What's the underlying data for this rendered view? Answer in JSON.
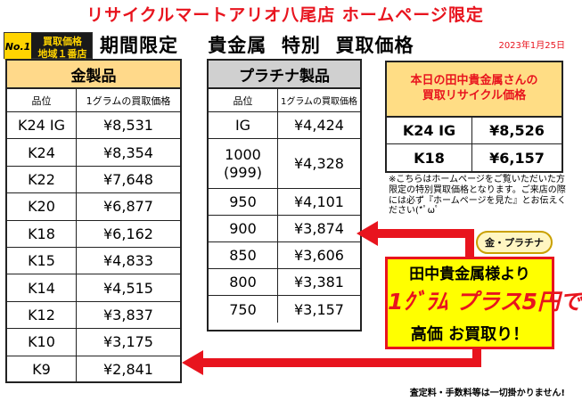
{
  "header": {
    "title": "リサイクルマートアリオ八尾店  ホームページ限定",
    "badge_no1": "No.1",
    "badge_line1": "買取価格",
    "badge_line2": "地域１番店",
    "main_title": "期間限定    貴金属  特別  買取価格",
    "date": "2023年1月25日"
  },
  "gold": {
    "title": "金製品",
    "col_item": "品位",
    "col_price": "1グラムの買取価格",
    "rows": [
      {
        "item": "K24 IG",
        "price": "¥8,531"
      },
      {
        "item": "K24",
        "price": "¥8,354"
      },
      {
        "item": "K22",
        "price": "¥7,648"
      },
      {
        "item": "K20",
        "price": "¥6,877"
      },
      {
        "item": "K18",
        "price": "¥6,162"
      },
      {
        "item": "K15",
        "price": "¥4,833"
      },
      {
        "item": "K14",
        "price": "¥4,515"
      },
      {
        "item": "K12",
        "price": "¥3,837"
      },
      {
        "item": "K10",
        "price": "¥3,175"
      },
      {
        "item": "K9",
        "price": "¥2,841"
      }
    ]
  },
  "platinum": {
    "title": "プラチナ製品",
    "col_item": "品位",
    "col_price": "1グラムの買取価格",
    "rows": [
      {
        "item": "IG",
        "price": "¥4,424"
      },
      {
        "item": "1000\n(999)",
        "price": "¥4,328"
      },
      {
        "item": "950",
        "price": "¥4,101"
      },
      {
        "item": "900",
        "price": "¥3,874"
      },
      {
        "item": "850",
        "price": "¥3,606"
      },
      {
        "item": "800",
        "price": "¥3,381"
      },
      {
        "item": "750",
        "price": "¥3,157"
      }
    ]
  },
  "tanaka": {
    "title_line1": "本日の田中貴金属さんの",
    "title_line2": "買取リサイクル価格",
    "rows": [
      {
        "item": "K24 IG",
        "price": "¥8,526"
      },
      {
        "item": "K18",
        "price": "¥6,157"
      }
    ]
  },
  "note": "※こちらはホームページをご覧いただいた方限定の特別買取価格となります。ご来店の際には必ず『ホームページを見た』とお伝えください(*ﾟωﾟ",
  "stamp": "金・プラチナ",
  "promo": {
    "line1": "田中貴金属様より",
    "line2": "1ｸﾞﾗﾑ プラス5円で",
    "line3": "高価 お買取り！"
  },
  "footer": "査定料・手数料等は一切掛かりません!",
  "colors": {
    "red": "#e8141e",
    "gold_header": "#ffd98a",
    "platinum_header": "#d0d0d0",
    "promo_bg": "#ffff00"
  }
}
